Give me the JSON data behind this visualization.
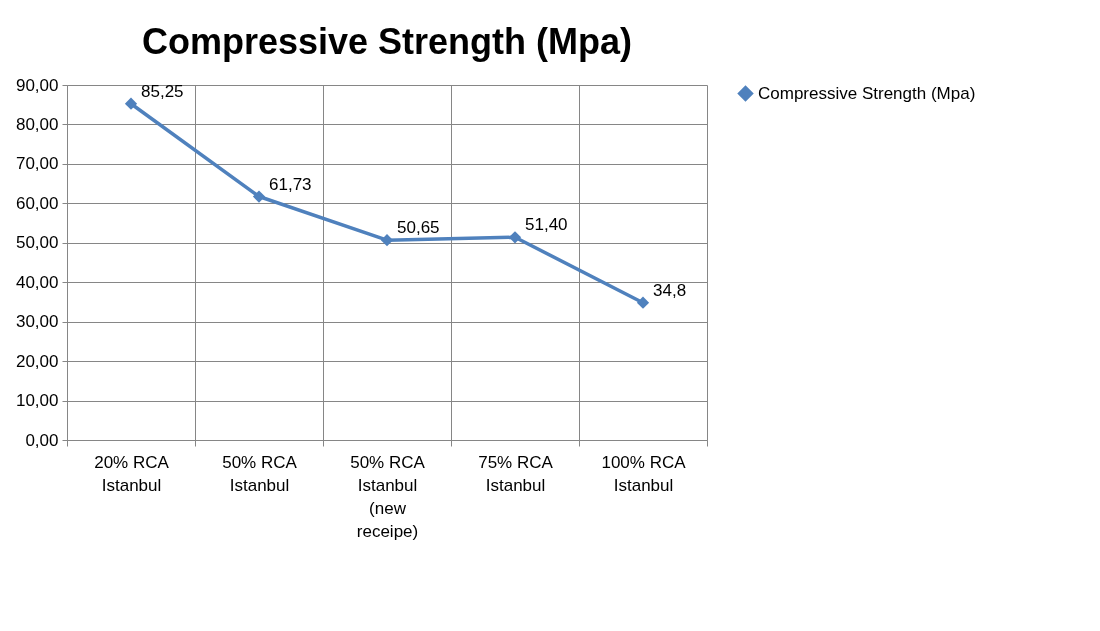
{
  "chart_data": {
    "type": "line",
    "title": "Compressive Strength (Mpa)",
    "categories": [
      "20% RCA Istanbul",
      "50% RCA Istanbul",
      "50% RCA Istanbul (new receipe)",
      "75% RCA Istanbul",
      "100% RCA Istanbul"
    ],
    "series": [
      {
        "name": "Compressive Strength (Mpa)",
        "color": "#4f81bd",
        "values": [
          85.25,
          61.73,
          50.65,
          51.4,
          34.8
        ],
        "value_labels": [
          "85,25",
          "61,73",
          "50,65",
          "51,40",
          "34,8"
        ]
      }
    ],
    "ylim": [
      0,
      90
    ],
    "yticks": [
      {
        "value": 0,
        "label": "0,00"
      },
      {
        "value": 10,
        "label": "10,00"
      },
      {
        "value": 20,
        "label": "20,00"
      },
      {
        "value": 30,
        "label": "30,00"
      },
      {
        "value": 40,
        "label": "40,00"
      },
      {
        "value": 50,
        "label": "50,00"
      },
      {
        "value": 60,
        "label": "60,00"
      },
      {
        "value": 70,
        "label": "70,00"
      },
      {
        "value": 80,
        "label": "80,00"
      },
      {
        "value": 90,
        "label": "90,00"
      }
    ],
    "grid": true,
    "legend": "right",
    "marker": "diamond"
  }
}
